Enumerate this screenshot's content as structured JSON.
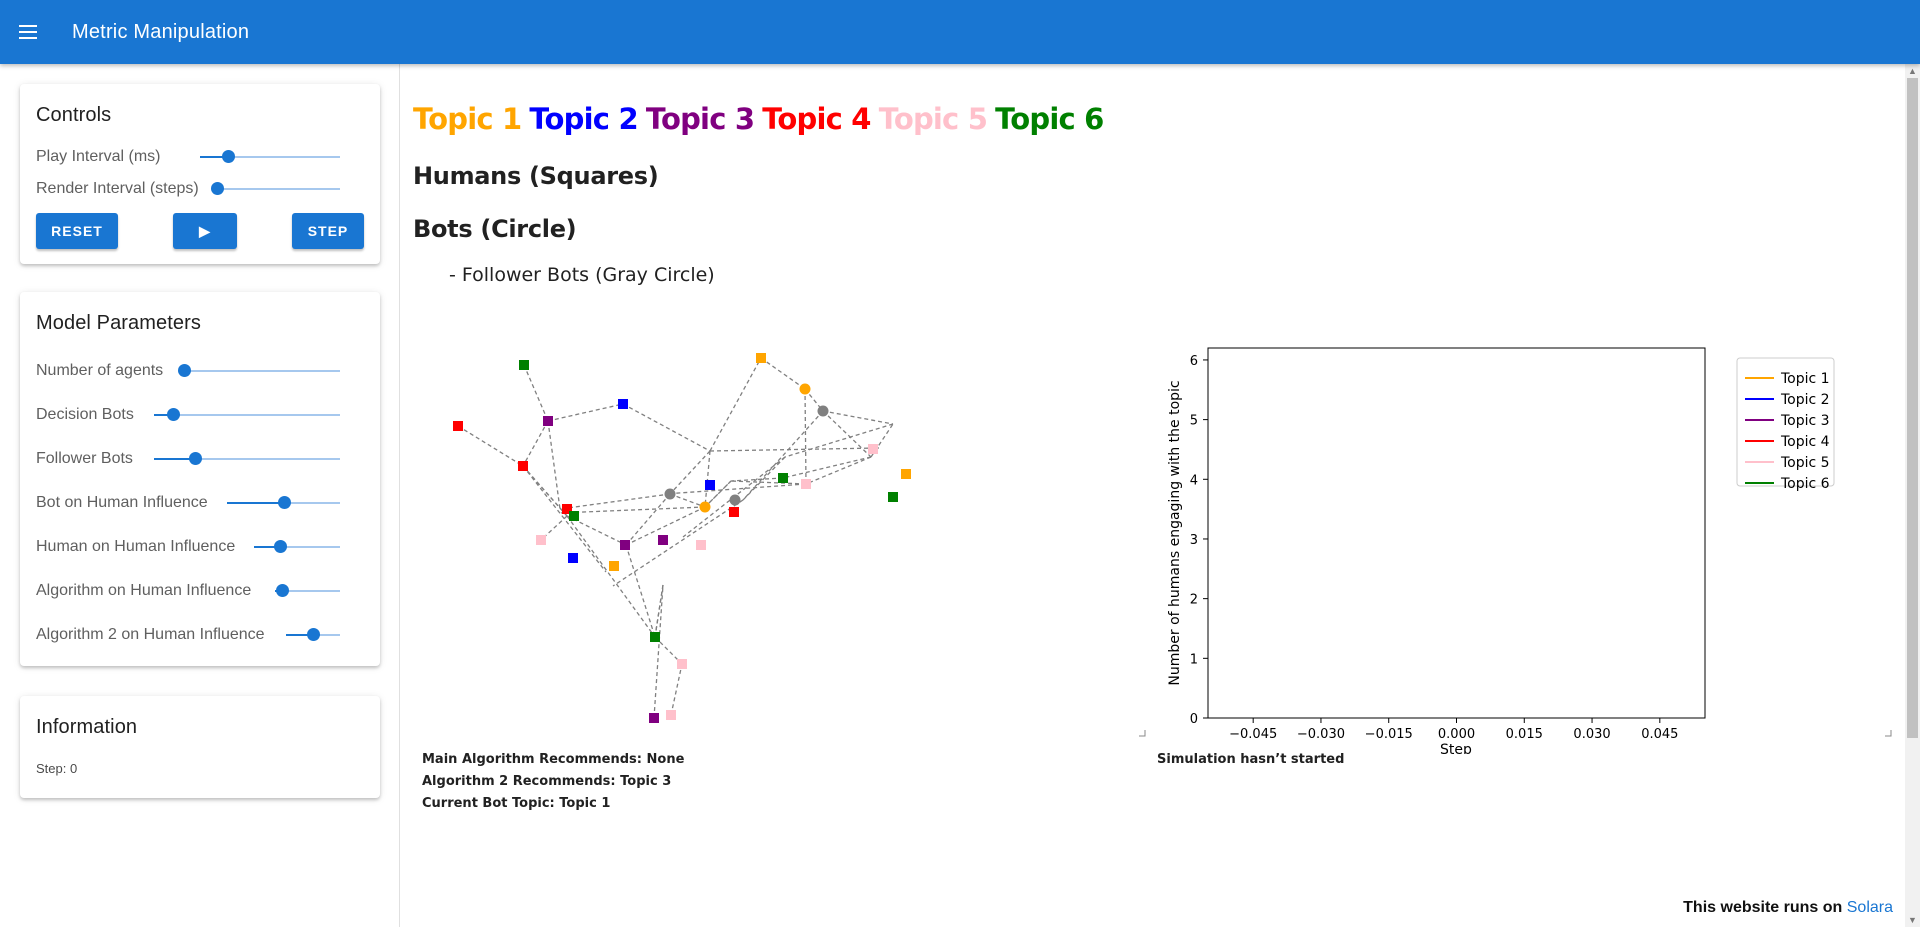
{
  "app": {
    "title": "Metric Manipulation"
  },
  "controls": {
    "title": "Controls",
    "sliders": [
      {
        "label": "Play Interval (ms)",
        "value": 0.2
      },
      {
        "label": "Render Interval (steps)",
        "value": 0.0
      }
    ],
    "buttons": {
      "reset": "RESET",
      "play": "▶",
      "step": "STEP"
    }
  },
  "model_parameters": {
    "title": "Model Parameters",
    "sliders": [
      {
        "label": "Number of agents",
        "value": 0.0
      },
      {
        "label": "Decision Bots",
        "value": 0.1
      },
      {
        "label": "Follower Bots",
        "value": 0.22
      },
      {
        "label": "Bot on Human Influence",
        "value": 0.5
      },
      {
        "label": "Human on Human Influence",
        "value": 0.3
      },
      {
        "label": "Algorithm on Human Influence",
        "value": 0.1
      },
      {
        "label": "Algorithm 2 on Human Influence",
        "value": 0.5
      }
    ]
  },
  "information": {
    "title": "Information",
    "step": "Step: 0"
  },
  "legend_heading": {
    "topics": [
      {
        "label": "Topic 1",
        "color": "#ffa500"
      },
      {
        "label": "Topic 2",
        "color": "#0000ff"
      },
      {
        "label": "Topic 3",
        "color": "#800080"
      },
      {
        "label": "Topic 4",
        "color": "#ff0000"
      },
      {
        "label": "Topic 5",
        "color": "#ffc0cb"
      },
      {
        "label": "Topic 6",
        "color": "#008000"
      }
    ],
    "humans": "Humans (Squares)",
    "bots": "Bots (Circle)",
    "follower_bots": "- Follower Bots (Gray Circle)"
  },
  "network_status": {
    "main_algorithm": "Main Algorithm Recommends: None",
    "algorithm_2": "Algorithm 2 Recommends: Topic 3",
    "current_bot_topic": "Current Bot Topic: Topic 1"
  },
  "chart_status": "Simulation hasn’t started",
  "chart_data": {
    "type": "line",
    "xlabel": "Step",
    "ylabel": "Number of humans engaging with the topic",
    "xlim": [
      -0.055,
      0.055
    ],
    "ylim": [
      0,
      6.2
    ],
    "xticks": [
      -0.045,
      -0.03,
      -0.015,
      0.0,
      0.015,
      0.03,
      0.045
    ],
    "xtick_labels": [
      "−0.045",
      "−0.030",
      "−0.015",
      "0.000",
      "0.015",
      "0.030",
      "0.045"
    ],
    "yticks": [
      0,
      1,
      2,
      3,
      4,
      5,
      6
    ],
    "legend_position": "right",
    "series": [
      {
        "name": "Topic 1",
        "color": "#ffa500",
        "values": []
      },
      {
        "name": "Topic 2",
        "color": "#0000ff",
        "values": []
      },
      {
        "name": "Topic 3",
        "color": "#800080",
        "values": []
      },
      {
        "name": "Topic 4",
        "color": "#ff0000",
        "values": []
      },
      {
        "name": "Topic 5",
        "color": "#ffc0cb",
        "values": []
      },
      {
        "name": "Topic 6",
        "color": "#008000",
        "values": []
      }
    ]
  },
  "footer": {
    "text": "This website runs on",
    "link": "Solara"
  }
}
